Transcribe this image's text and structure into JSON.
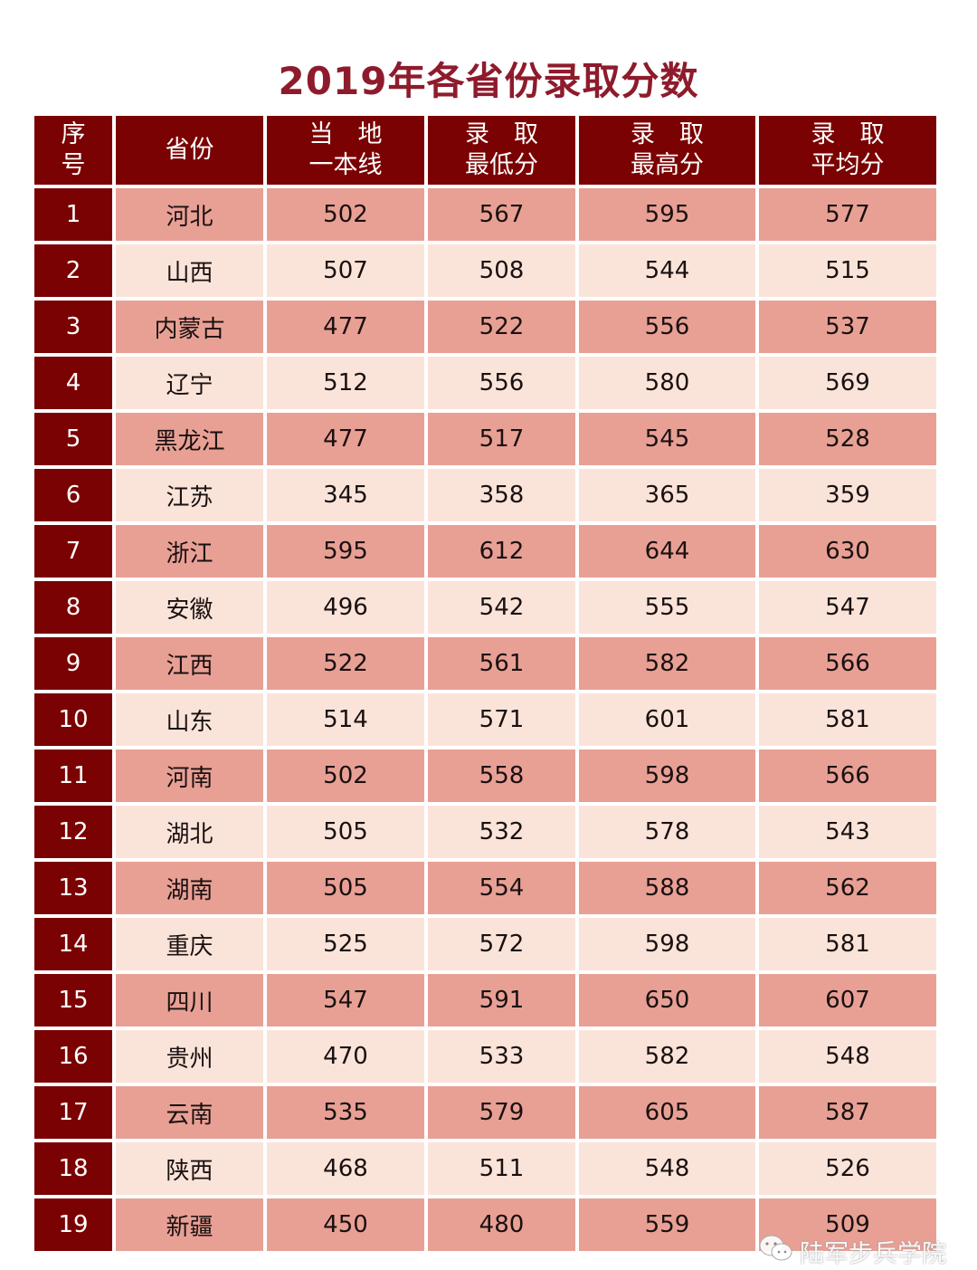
{
  "title": "2019年各省份录取分数",
  "colors": {
    "header": "#7b0202",
    "row_odd": "#e8a095",
    "row_even": "#fae4da",
    "title": "#8e1b2c"
  },
  "headers": [
    "序\n号",
    "省份",
    "当　地\n一本线",
    "录　取\n最低分",
    "录　取\n最高分",
    "录　取\n平均分"
  ],
  "rows": [
    [
      "1",
      "河北",
      "502",
      "567",
      "595",
      "577"
    ],
    [
      "2",
      "山西",
      "507",
      "508",
      "544",
      "515"
    ],
    [
      "3",
      "内蒙古",
      "477",
      "522",
      "556",
      "537"
    ],
    [
      "4",
      "辽宁",
      "512",
      "556",
      "580",
      "569"
    ],
    [
      "5",
      "黑龙江",
      "477",
      "517",
      "545",
      "528"
    ],
    [
      "6",
      "江苏",
      "345",
      "358",
      "365",
      "359"
    ],
    [
      "7",
      "浙江",
      "595",
      "612",
      "644",
      "630"
    ],
    [
      "8",
      "安徽",
      "496",
      "542",
      "555",
      "547"
    ],
    [
      "9",
      "江西",
      "522",
      "561",
      "582",
      "566"
    ],
    [
      "10",
      "山东",
      "514",
      "571",
      "601",
      "581"
    ],
    [
      "11",
      "河南",
      "502",
      "558",
      "598",
      "566"
    ],
    [
      "12",
      "湖北",
      "505",
      "532",
      "578",
      "543"
    ],
    [
      "13",
      "湖南",
      "505",
      "554",
      "588",
      "562"
    ],
    [
      "14",
      "重庆",
      "525",
      "572",
      "598",
      "581"
    ],
    [
      "15",
      "四川",
      "547",
      "591",
      "650",
      "607"
    ],
    [
      "16",
      "贵州",
      "470",
      "533",
      "582",
      "548"
    ],
    [
      "17",
      "云南",
      "535",
      "579",
      "605",
      "587"
    ],
    [
      "18",
      "陕西",
      "468",
      "511",
      "548",
      "526"
    ],
    [
      "19",
      "新疆",
      "450",
      "480",
      "559",
      "509"
    ]
  ],
  "watermark": {
    "icon": "wechat-icon",
    "text": "陆军步兵学院"
  }
}
